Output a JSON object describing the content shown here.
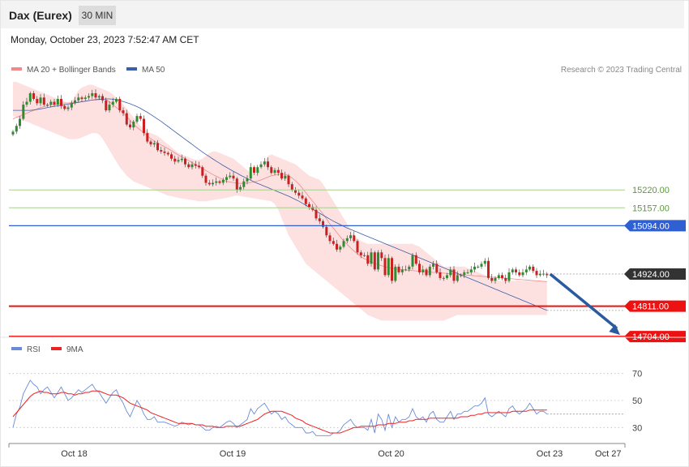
{
  "header": {
    "title": "Dax (Eurex)",
    "timeframe": "30 MIN"
  },
  "timestamp": "Monday, October 23, 2023 7:52:47 AM CET",
  "legend": {
    "ma20": "MA 20 + Bollinger Bands",
    "ma50": "MA 50",
    "rsi": "RSI",
    "rsi_ma": "9MA"
  },
  "credit": "Research © 2023 Trading Central",
  "colors": {
    "bollinger_fill": "#fde0e0",
    "ma20": "#f08a8a",
    "ma50": "#3a5fa8",
    "candle_up": "#2e8b2e",
    "candle_down": "#cc1f1f",
    "resistance": "#a8d08d",
    "pivot": "#2f5fd0",
    "support": "#ee1111",
    "last_price": "#333333",
    "arrow": "#2a5aa0",
    "rsi": "#6a8ad8",
    "rsi_ma": "#ee2222"
  },
  "chart_data": [
    {
      "type": "candlestick",
      "title": "Dax (Eurex)",
      "timeframe": "30 MIN",
      "ylim": [
        14690,
        15620
      ],
      "x_tick_labels": [
        "Oct 18",
        "Oct 19",
        "Oct 20",
        "Oct 23",
        "Oct 27"
      ],
      "x_tick_index": [
        18,
        64,
        110,
        156,
        173
      ],
      "close": [
        15425,
        15445,
        15470,
        15520,
        15530,
        15560,
        15540,
        15525,
        15545,
        15520,
        15520,
        15530,
        15520,
        15540,
        15515,
        15505,
        15510,
        15525,
        15535,
        15545,
        15540,
        15545,
        15550,
        15560,
        15545,
        15550,
        15535,
        15500,
        15520,
        15530,
        15540,
        15500,
        15490,
        15450,
        15440,
        15460,
        15480,
        15470,
        15420,
        15390,
        15380,
        15385,
        15360,
        15355,
        15350,
        15345,
        15330,
        15320,
        15325,
        15330,
        15310,
        15300,
        15310,
        15305,
        15300,
        15270,
        15245,
        15240,
        15245,
        15250,
        15245,
        15255,
        15265,
        15270,
        15260,
        15220,
        15230,
        15250,
        15260,
        15300,
        15280,
        15300,
        15310,
        15320,
        15300,
        15280,
        15290,
        15280,
        15260,
        15270,
        15240,
        15220,
        15210,
        15200,
        15190,
        15170,
        15160,
        15150,
        15120,
        15110,
        15090,
        15060,
        15040,
        15030,
        15010,
        15020,
        15040,
        15050,
        15060,
        15040,
        15000,
        14990,
        14990,
        14960,
        15000,
        14940,
        15000,
        14980,
        14920,
        14980,
        14900,
        14950,
        14930,
        14940,
        14940,
        14950,
        14990,
        14960,
        14930,
        14940,
        14920,
        14950,
        14960,
        14930,
        14910,
        14910,
        14920,
        14940,
        14900,
        14920,
        14920,
        14930,
        14930,
        14940,
        14950,
        14950,
        14960,
        14970,
        14910,
        14900,
        14910,
        14920,
        14910,
        14900,
        14930,
        14940,
        14930,
        14920,
        14930,
        14940,
        14950,
        14935,
        14920,
        14925,
        14925,
        14920
      ],
      "bollinger_upper": [
        15600,
        15600,
        15595,
        15590,
        15585,
        15580,
        15575,
        15570,
        15565,
        15560,
        15555,
        15550,
        15545,
        15540,
        15535,
        15530,
        15525,
        15530,
        15550,
        15570,
        15580,
        15585,
        15590,
        15590,
        15585,
        15580,
        15575,
        15570,
        15565,
        15555,
        15545,
        15535,
        15520,
        15505,
        15490,
        15475,
        15460,
        15445,
        15435,
        15425,
        15420,
        15415,
        15410,
        15400,
        15390,
        15380,
        15370,
        15360,
        15350,
        15345,
        15340,
        15335,
        15330,
        15325,
        15325,
        15330,
        15340,
        15350,
        15355,
        15355,
        15350,
        15345,
        15340,
        15335,
        15330,
        15320,
        15310,
        15300,
        15290,
        15280,
        15275,
        15280,
        15300,
        15320,
        15340,
        15345,
        15340,
        15335,
        15330,
        15325,
        15320,
        15315,
        15310,
        15300,
        15290,
        15280,
        15270,
        15265,
        15260,
        15255,
        15240,
        15220,
        15200,
        15180,
        15160,
        15140,
        15120,
        15100,
        15080,
        15060,
        15050,
        15040,
        15035,
        15030,
        15030,
        15030,
        15030,
        15030,
        15030,
        15030,
        15030,
        15030,
        15030,
        15030,
        15030,
        15030,
        15030,
        15025,
        15020,
        15010,
        15000,
        14990,
        14980,
        14970,
        14960,
        14950,
        14950,
        14950,
        14950,
        14950,
        14950,
        14950,
        14945,
        14940,
        14935,
        14930,
        14925,
        14920,
        14915,
        14910,
        14905,
        14900,
        14900,
        14900,
        14900,
        14900,
        14900,
        14900,
        14900,
        14900,
        14900,
        14900,
        14900,
        14900,
        14900,
        14900
      ],
      "bollinger_lower": [
        15480,
        15475,
        15470,
        15465,
        15460,
        15455,
        15450,
        15445,
        15440,
        15435,
        15430,
        15425,
        15420,
        15415,
        15410,
        15405,
        15400,
        15398,
        15398,
        15400,
        15405,
        15410,
        15415,
        15420,
        15420,
        15415,
        15400,
        15380,
        15360,
        15340,
        15320,
        15300,
        15285,
        15270,
        15260,
        15250,
        15245,
        15240,
        15235,
        15230,
        15225,
        15220,
        15215,
        15210,
        15205,
        15200,
        15198,
        15195,
        15192,
        15190,
        15188,
        15186,
        15184,
        15182,
        15180,
        15180,
        15180,
        15182,
        15184,
        15186,
        15188,
        15190,
        15192,
        15195,
        15198,
        15200,
        15198,
        15196,
        15194,
        15192,
        15190,
        15188,
        15186,
        15184,
        15182,
        15180,
        15170,
        15150,
        15120,
        15090,
        15060,
        15040,
        15020,
        15000,
        14980,
        14960,
        14950,
        14940,
        14930,
        14920,
        14910,
        14900,
        14890,
        14880,
        14870,
        14860,
        14850,
        14840,
        14830,
        14820,
        14810,
        14800,
        14790,
        14780,
        14775,
        14770,
        14765,
        14760,
        14760,
        14760,
        14760,
        14760,
        14760,
        14760,
        14760,
        14760,
        14760,
        14760,
        14760,
        14760,
        14760,
        14760,
        14760,
        14760,
        14760,
        14760,
        14765,
        14770,
        14775,
        14780,
        14780,
        14780,
        14780,
        14780,
        14780,
        14780,
        14780,
        14780,
        14780,
        14780,
        14780,
        14780,
        14780,
        14780,
        14780,
        14780,
        14780,
        14780,
        14780,
        14780,
        14780,
        14780,
        14780,
        14780,
        14780,
        14780
      ],
      "ma20": [
        15470,
        15475,
        15480,
        15485,
        15490,
        15495,
        15500,
        15505,
        15510,
        15513,
        15516,
        15519,
        15520,
        15522,
        15524,
        15526,
        15526,
        15527,
        15528,
        15529,
        15530,
        15532,
        15534,
        15536,
        15538,
        15540,
        15540,
        15538,
        15530,
        15520,
        15510,
        15500,
        15490,
        15478,
        15465,
        15450,
        15440,
        15430,
        15420,
        15410,
        15400,
        15392,
        15385,
        15378,
        15372,
        15365,
        15358,
        15350,
        15343,
        15336,
        15330,
        15323,
        15316,
        15309,
        15302,
        15295,
        15288,
        15281,
        15274,
        15268,
        15262,
        15256,
        15250,
        15248,
        15246,
        15244,
        15243,
        15243,
        15244,
        15246,
        15248,
        15251,
        15255,
        15260,
        15265,
        15270,
        15272,
        15274,
        15276,
        15275,
        15270,
        15262,
        15252,
        15240,
        15226,
        15210,
        15195,
        15180,
        15165,
        15150,
        15135,
        15118,
        15100,
        15085,
        15070,
        15055,
        15040,
        15028,
        15016,
        15005,
        14995,
        14985,
        14978,
        14972,
        14966,
        14961,
        14957,
        14953,
        14950,
        14947,
        14944,
        14942,
        14940,
        14939,
        14938,
        14937,
        14936,
        14935,
        14934,
        14933,
        14932,
        14931,
        14930,
        14929,
        14928,
        14927,
        14926,
        14925,
        14924,
        14923,
        14922,
        14921,
        14920,
        14919,
        14918,
        14917,
        14916,
        14915,
        14914,
        14913,
        14912,
        14911,
        14910,
        14909,
        14908,
        14907,
        14906,
        14905,
        14904,
        14903,
        14902,
        14901,
        14900,
        14899,
        14898,
        14897
      ],
      "ma50": [
        15500,
        15500,
        15500,
        15500,
        15500,
        15500,
        15501,
        15503,
        15505,
        15507,
        15510,
        15512,
        15514,
        15516,
        15518,
        15520,
        15522,
        15524,
        15526,
        15528,
        15530,
        15532,
        15534,
        15536,
        15537,
        15538,
        15539,
        15540,
        15540,
        15539,
        15537,
        15534,
        15531,
        15527,
        15523,
        15518,
        15513,
        15507,
        15500,
        15493,
        15485,
        15477,
        15469,
        15461,
        15452,
        15443,
        15434,
        15425,
        15416,
        15407,
        15398,
        15389,
        15380,
        15371,
        15362,
        15353,
        15345,
        15337,
        15329,
        15321,
        15314,
        15306,
        15299,
        15292,
        15285,
        15279,
        15272,
        15266,
        15260,
        15254,
        15248,
        15243,
        15238,
        15233,
        15228,
        15223,
        15218,
        15213,
        15208,
        15203,
        15198,
        15192,
        15186,
        15180,
        15173,
        15166,
        15159,
        15152,
        15145,
        15138,
        15131,
        15124,
        15117,
        15110,
        15104,
        15098,
        15092,
        15086,
        15081,
        15076,
        15071,
        15066,
        15061,
        15056,
        15051,
        15046,
        15041,
        15036,
        15031,
        15026,
        15021,
        15016,
        15011,
        15006,
        15001,
        14996,
        14991,
        14986,
        14981,
        14976,
        14971,
        14966,
        14961,
        14956,
        14951,
        14946,
        14941,
        14936,
        14931,
        14926,
        14921,
        14916,
        14911,
        14906,
        14901,
        14896,
        14891,
        14886,
        14881,
        14876,
        14871,
        14866,
        14861,
        14856,
        14851,
        14846,
        14841,
        14836,
        14831,
        14826,
        14821,
        14816,
        14811,
        14806,
        14801,
        14796
      ],
      "levels": [
        {
          "value": 15220,
          "label": "15220.00",
          "kind": "resistance"
        },
        {
          "value": 15157,
          "label": "15157.00",
          "kind": "resistance"
        },
        {
          "value": 15094,
          "label": "15094.00",
          "kind": "pivot"
        },
        {
          "value": 14924,
          "label": "14924.00",
          "kind": "last_price"
        },
        {
          "value": 14811,
          "label": "14811.00",
          "kind": "support"
        },
        {
          "value": 14704,
          "label": "14704.00",
          "kind": "support"
        }
      ],
      "forecast_arrow": {
        "from": 14924,
        "to": 14704,
        "direction": "down"
      }
    },
    {
      "type": "line",
      "series": [
        {
          "name": "RSI",
          "values": [
            30,
            40,
            45,
            55,
            60,
            65,
            62,
            60,
            55,
            58,
            60,
            56,
            52,
            56,
            60,
            55,
            50,
            52,
            55,
            58,
            56,
            58,
            60,
            62,
            58,
            56,
            52,
            48,
            52,
            56,
            58,
            52,
            48,
            42,
            38,
            44,
            50,
            46,
            40,
            36,
            36,
            38,
            34,
            34,
            34,
            33,
            32,
            31,
            32,
            34,
            33,
            32,
            33,
            32,
            32,
            30,
            28,
            28,
            30,
            31,
            30,
            32,
            34,
            35,
            33,
            30,
            32,
            34,
            36,
            44,
            40,
            44,
            46,
            48,
            44,
            40,
            42,
            40,
            36,
            38,
            34,
            32,
            30,
            30,
            30,
            26,
            26,
            27,
            24,
            24,
            24,
            24,
            24,
            26,
            26,
            28,
            32,
            34,
            36,
            32,
            30,
            30,
            30,
            28,
            36,
            26,
            40,
            36,
            28,
            40,
            30,
            38,
            34,
            36,
            36,
            38,
            44,
            38,
            36,
            38,
            34,
            40,
            42,
            36,
            34,
            34,
            38,
            42,
            36,
            40,
            40,
            42,
            42,
            44,
            46,
            46,
            48,
            52,
            40,
            38,
            40,
            42,
            40,
            38,
            44,
            46,
            42,
            40,
            42,
            44,
            48,
            44,
            40,
            42,
            42,
            40
          ]
        },
        {
          "name": "9MA",
          "values": [
            38,
            41,
            44,
            47,
            50,
            53,
            55,
            56,
            57,
            56,
            56,
            55,
            55,
            55,
            56,
            56,
            55,
            55,
            54,
            55,
            55,
            56,
            56,
            57,
            57,
            57,
            56,
            55,
            54,
            54,
            54,
            53,
            52,
            50,
            48,
            47,
            46,
            45,
            44,
            43,
            41,
            40,
            39,
            38,
            37,
            36,
            35,
            34,
            33,
            33,
            33,
            33,
            33,
            32,
            32,
            32,
            31,
            31,
            31,
            30,
            30,
            30,
            31,
            31,
            31,
            31,
            31,
            32,
            33,
            34,
            35,
            36,
            38,
            40,
            41,
            42,
            42,
            42,
            42,
            41,
            40,
            39,
            37,
            36,
            35,
            33,
            32,
            31,
            30,
            29,
            28,
            27,
            26,
            26,
            26,
            26,
            27,
            28,
            29,
            30,
            30,
            31,
            31,
            31,
            31,
            31,
            32,
            32,
            32,
            33,
            33,
            33,
            34,
            34,
            34,
            35,
            35,
            36,
            36,
            36,
            36,
            37,
            37,
            37,
            37,
            37,
            37,
            37,
            37,
            37,
            38,
            38,
            38,
            39,
            39,
            40,
            40,
            41,
            41,
            41,
            41,
            41,
            41,
            41,
            41,
            42,
            42,
            42,
            42,
            42,
            43,
            43,
            43,
            43,
            43,
            43
          ]
        }
      ],
      "ylim": [
        20,
        80
      ],
      "y_ticks": [
        70,
        50,
        30
      ]
    }
  ]
}
